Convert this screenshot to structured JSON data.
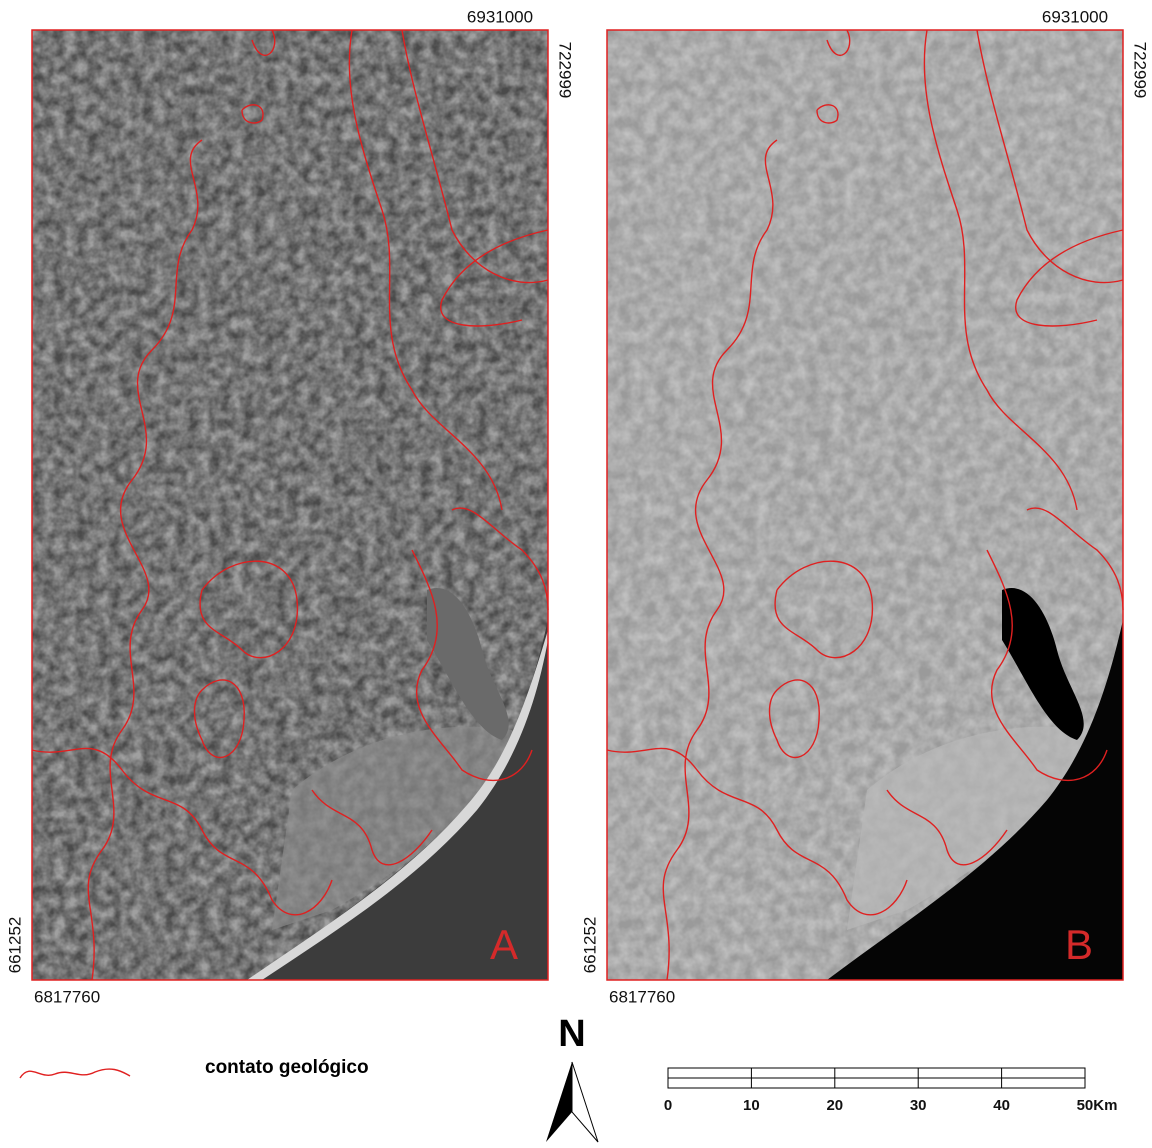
{
  "panels": [
    {
      "label": "A",
      "top_coord": "6931000",
      "right_coord": "722999",
      "left_coord": "661252",
      "bottom_coord": "6817760"
    },
    {
      "label": "B",
      "top_coord": "6931000",
      "right_coord": "722999",
      "left_coord": "661252",
      "bottom_coord": "6817760"
    }
  ],
  "legend": {
    "label": "contato geológico"
  },
  "north": {
    "label": "N"
  },
  "scale": {
    "labels": [
      "0",
      "10",
      "20",
      "30",
      "40",
      "50Km"
    ]
  }
}
